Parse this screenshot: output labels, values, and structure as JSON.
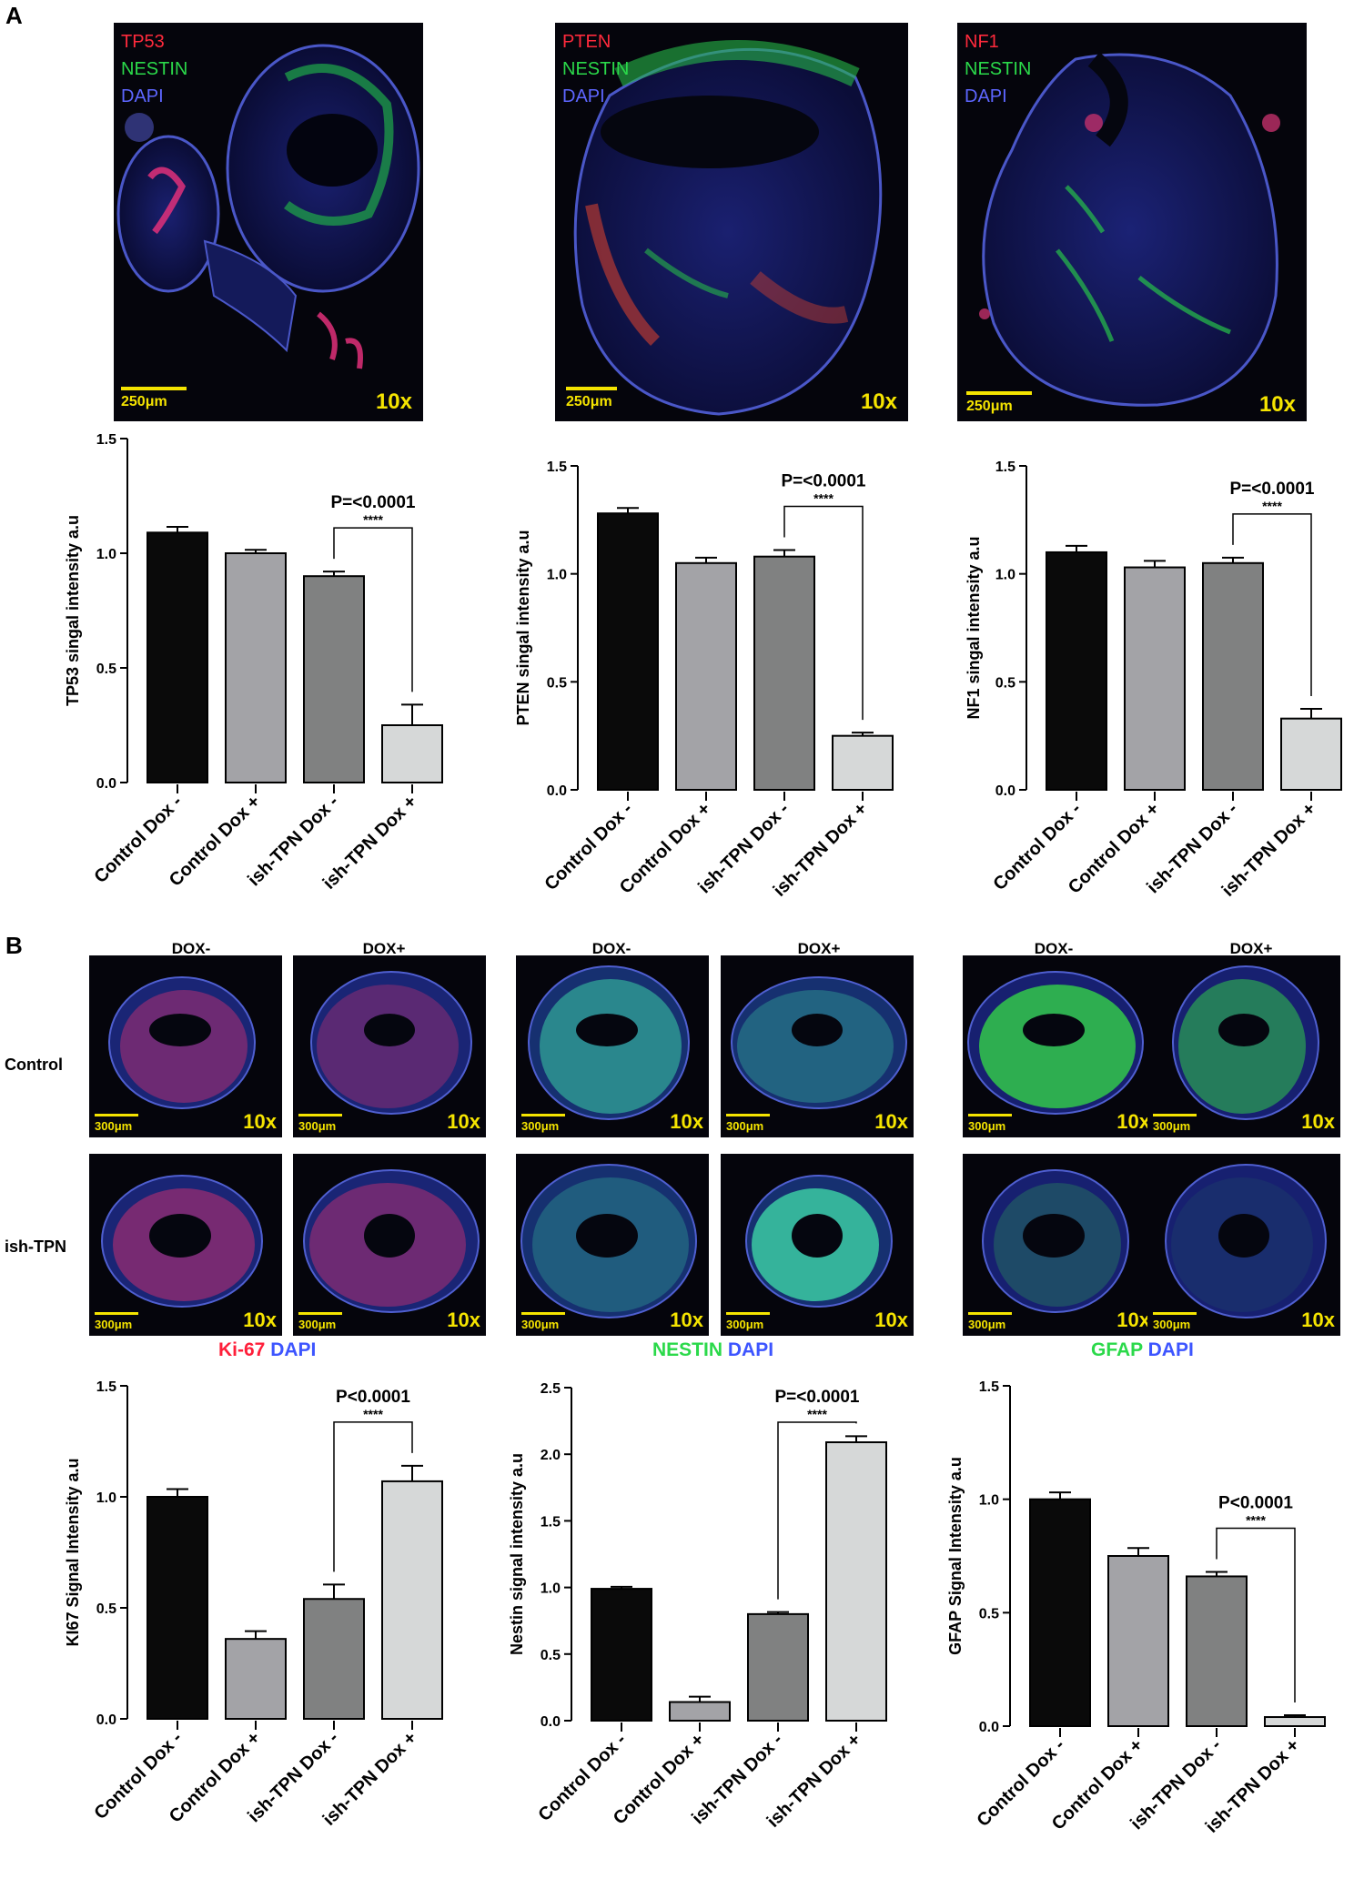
{
  "panel_labels": {
    "a": "A",
    "b": "B"
  },
  "panelA": {
    "images": [
      {
        "channels": [
          "TP53",
          "NESTIN",
          "DAPI"
        ],
        "scale": "250μm",
        "mag": "10x"
      },
      {
        "channels": [
          "PTEN",
          "NESTIN",
          "DAPI"
        ],
        "scale": "250μm",
        "mag": "10x"
      },
      {
        "channels": [
          "NF1",
          "NESTIN",
          "DAPI"
        ],
        "scale": "250μm",
        "mag": "10x"
      }
    ]
  },
  "panelB": {
    "col_labels": [
      "DOX-",
      "DOX+"
    ],
    "row_labels": [
      "Control",
      "ish-TPN"
    ],
    "scale": "300μm",
    "mag": "10x",
    "stains": [
      {
        "marker": "Ki-67",
        "dapi": "DAPI",
        "marker_color": "#ff1f3a"
      },
      {
        "marker": "NESTIN",
        "dapi": "DAPI",
        "marker_color": "#2bd94a"
      },
      {
        "marker": "GFAP",
        "dapi": "DAPI",
        "marker_color": "#2bd94a"
      }
    ]
  },
  "colors": {
    "bar1": "#0a0a0a",
    "bar2": "#a3a3a7",
    "bar3": "#808181",
    "bar4": "#d6d8d8"
  },
  "chart_data": [
    {
      "type": "bar",
      "categories": [
        "Control Dox -",
        "Control Dox +",
        "ish-TPN Dox -",
        "ish-TPN Dox +"
      ],
      "values": [
        1.09,
        1.0,
        0.9,
        0.25
      ],
      "errors": [
        0.025,
        0.015,
        0.02,
        0.09
      ],
      "ylabel": "TP53 singal intensity  a.u",
      "ylim": [
        0,
        1.5
      ],
      "yticks": [
        "0.0",
        "0.5",
        "1.0",
        "1.5"
      ],
      "annotation": {
        "text": "P=<0.0001",
        "stars": "****",
        "from": 2,
        "to": 3
      }
    },
    {
      "type": "bar",
      "categories": [
        "Control Dox -",
        "Control Dox +",
        "ish-TPN Dox -",
        "ish-TPN Dox +"
      ],
      "values": [
        1.28,
        1.05,
        1.08,
        0.25
      ],
      "errors": [
        0.025,
        0.025,
        0.03,
        0.015
      ],
      "ylabel": "PTEN singal intensity  a.u",
      "ylim": [
        0,
        1.5
      ],
      "yticks": [
        "0.0",
        "0.5",
        "1.0",
        "1.5"
      ],
      "annotation": {
        "text": "P=<0.0001",
        "stars": "****",
        "from": 2,
        "to": 3
      }
    },
    {
      "type": "bar",
      "categories": [
        "Control Dox -",
        "Control Dox +",
        "ish-TPN Dox -",
        "ish-TPN Dox +"
      ],
      "values": [
        1.1,
        1.03,
        1.05,
        0.33
      ],
      "errors": [
        0.03,
        0.03,
        0.025,
        0.045
      ],
      "ylabel": "NF1 singal intensity  a.u",
      "ylim": [
        0,
        1.5
      ],
      "yticks": [
        "0.0",
        "0.5",
        "1.0",
        "1.5"
      ],
      "annotation": {
        "text": "P=<0.0001",
        "stars": "****",
        "from": 2,
        "to": 3
      }
    },
    {
      "type": "bar",
      "categories": [
        "Control Dox -",
        "Control Dox +",
        "ish-TPN Dox -",
        "ish-TPN Dox +"
      ],
      "values": [
        1.0,
        0.36,
        0.54,
        1.07
      ],
      "errors": [
        0.035,
        0.035,
        0.065,
        0.07
      ],
      "ylabel": "KI67 Signal Intensity a.u",
      "ylim": [
        0,
        1.5
      ],
      "yticks": [
        "0.0",
        "0.5",
        "1.0",
        "1.5"
      ],
      "annotation": {
        "text": "P<0.0001",
        "stars": "****",
        "from": 2,
        "to": 3
      }
    },
    {
      "type": "bar",
      "categories": [
        "Control Dox -",
        "Control Dox +",
        "ish-TPN Dox -",
        "ish-TPN Dox +"
      ],
      "values": [
        0.99,
        0.14,
        0.8,
        2.09
      ],
      "errors": [
        0.015,
        0.04,
        0.015,
        0.045
      ],
      "ylabel": "Nestin signal intensity  a.u",
      "ylim": [
        0,
        2.5
      ],
      "yticks": [
        "0.0",
        "0.5",
        "1.0",
        "1.5",
        "2.0",
        "2.5"
      ],
      "annotation": {
        "text": "P=<0.0001",
        "stars": "****",
        "from": 2,
        "to": 3
      }
    },
    {
      "type": "bar",
      "categories": [
        "Control Dox -",
        "Control Dox +",
        "ish-TPN Dox -",
        "ish-TPN Dox +"
      ],
      "values": [
        1.0,
        0.75,
        0.66,
        0.04
      ],
      "errors": [
        0.03,
        0.035,
        0.02,
        0.008
      ],
      "ylabel": "GFAP Signal Intensity a.u",
      "ylim": [
        0,
        1.5
      ],
      "yticks": [
        "0.0",
        "0.5",
        "1.0",
        "1.5"
      ],
      "annotation": {
        "text": "P<0.0001",
        "stars": "****",
        "from": 2,
        "to": 3
      }
    }
  ]
}
